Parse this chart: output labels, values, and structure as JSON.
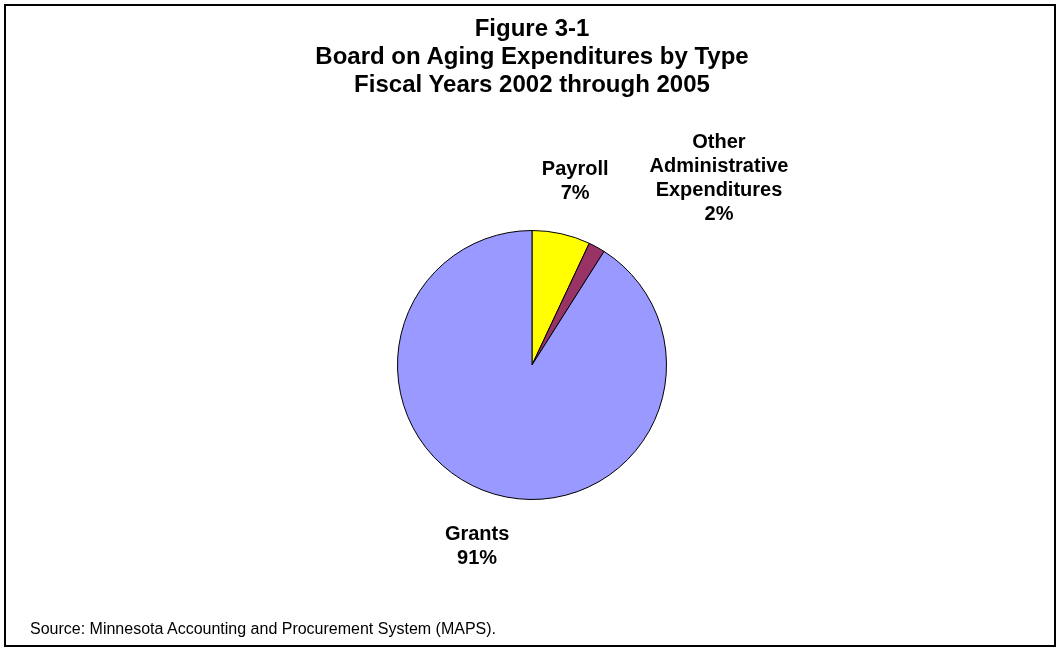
{
  "chart_data": {
    "type": "pie",
    "title": "Figure 3-1\nBoard on Aging Expenditures by Type\nFiscal Years 2002 through 2005",
    "categories": [
      "Payroll",
      "Other Administrative Expenditures",
      "Grants"
    ],
    "values": [
      7,
      2,
      91
    ],
    "colors": [
      "#ffff00",
      "#993366",
      "#9999ff"
    ],
    "value_labels": [
      "7%",
      "2%",
      "91%"
    ],
    "legend": false,
    "annotations": [
      "Source:  Minnesota Accounting and Procurement System (MAPS)."
    ]
  }
}
